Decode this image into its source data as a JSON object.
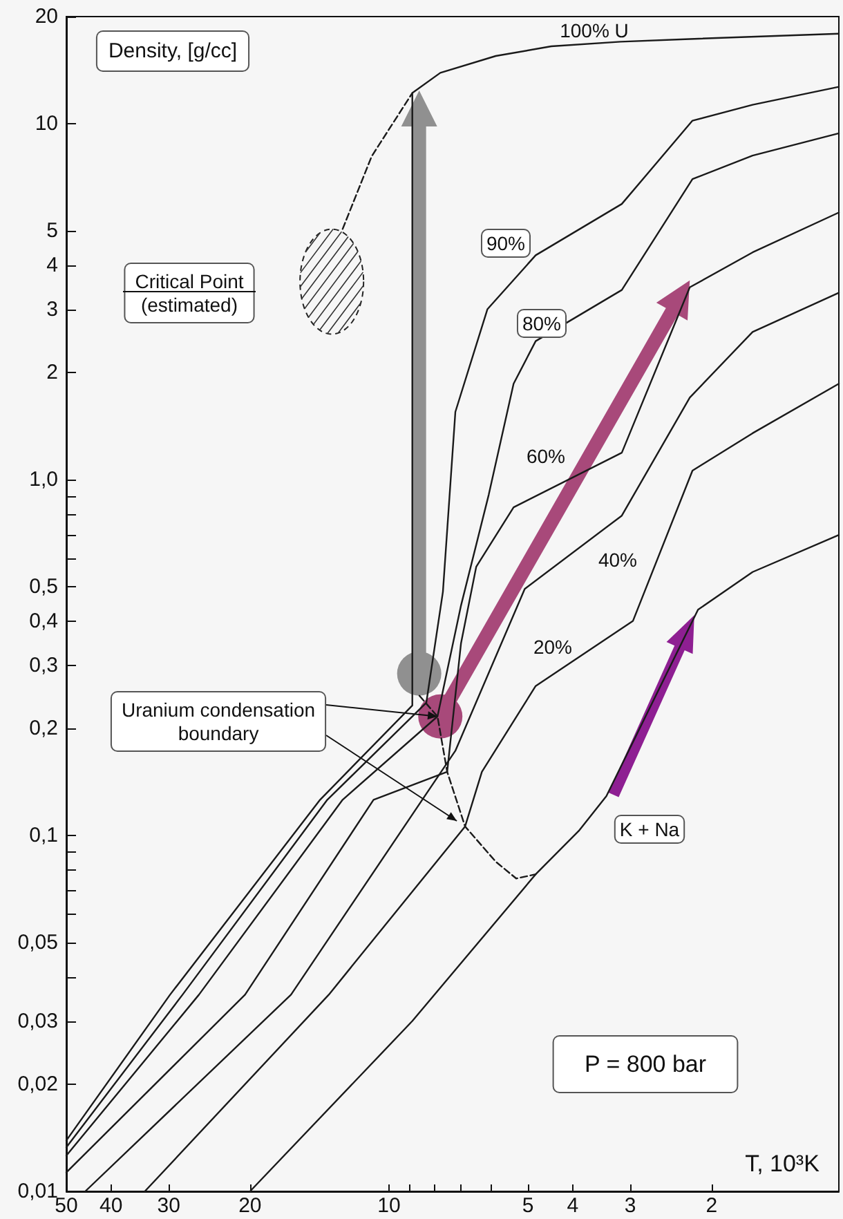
{
  "chart_data": {
    "type": "line",
    "xlabel": "T, 10³K",
    "ylabel": "Density, [g/cc]",
    "log": "xy",
    "marker": "none",
    "xlim": [
      50,
      1.06
    ],
    "ylim": [
      0.01,
      20
    ],
    "xticks": [
      50,
      40,
      30,
      20,
      10,
      {
        "value": 9,
        "label": null
      },
      {
        "value": 8,
        "label": null
      },
      {
        "value": 7,
        "label": null
      },
      {
        "value": 6,
        "label": null
      },
      5,
      4,
      3,
      2
    ],
    "yticks": [
      20,
      10,
      5,
      4,
      3,
      2,
      {
        "value": 1,
        "label": "1,0"
      },
      {
        "value": 0.9,
        "label": null
      },
      {
        "value": 0.8,
        "label": null
      },
      {
        "value": 0.7,
        "label": null
      },
      {
        "value": 0.6,
        "label": null
      },
      {
        "value": 0.5,
        "label": "0,5"
      },
      {
        "value": 0.4,
        "label": "0,4"
      },
      {
        "value": 0.3,
        "label": "0,3"
      },
      {
        "value": 0.2,
        "label": "0,2"
      },
      {
        "value": 0.1,
        "label": "0,1"
      },
      {
        "value": 0.09,
        "label": null
      },
      {
        "value": 0.08,
        "label": null
      },
      {
        "value": 0.07,
        "label": null
      },
      {
        "value": 0.06,
        "label": null
      },
      {
        "value": 0.05,
        "label": "0,05"
      },
      {
        "value": 0.04,
        "label": null
      },
      {
        "value": 0.03,
        "label": "0,03"
      },
      {
        "value": 0.02,
        "label": "0,02"
      },
      {
        "value": 0.01,
        "label": "0,01"
      }
    ],
    "annotations": [
      "Critical Point\n(estimated)",
      {
        "text": "Uranium condensation\nboundary",
        "x": 7.85,
        "y": 0.216
      },
      "P = 800 bar"
    ],
    "series": [
      {
        "name": "100% U",
        "color": "#1a1a1a",
        "x": [
          50,
          29.8,
          14.1,
          8.9,
          8.9,
          7.74,
          5.87,
          4.45,
          3.15,
          2.23,
          1.06
        ],
        "values": [
          0.0139,
          0.0357,
          0.126,
          0.232,
          12.2,
          13.9,
          15.5,
          16.5,
          17,
          17.3,
          17.9
        ]
      },
      {
        "name": "90%",
        "color": "#1a1a1a",
        "x": [
          50,
          28,
          13.6,
          8.3,
          7.64,
          7.18,
          6.12,
          4.81,
          3.13,
          2.2,
          1.63,
          1.06
        ],
        "values": [
          0.0133,
          0.0357,
          0.126,
          0.236,
          0.484,
          1.55,
          3.01,
          4.27,
          5.95,
          10.2,
          11.3,
          12.7
        ]
      },
      {
        "name": "80%",
        "color": "#1a1a1a",
        "x": [
          50,
          25.8,
          12.6,
          7.85,
          6.98,
          6.08,
          5.37,
          4.81,
          3.13,
          2.2,
          1.63,
          1.06
        ],
        "values": [
          0.0126,
          0.0357,
          0.126,
          0.216,
          0.443,
          0.906,
          1.86,
          2.45,
          3.41,
          6.99,
          8.14,
          9.4
        ]
      },
      {
        "name": "60%",
        "color": "#1a1a1a",
        "x": [
          50,
          20.5,
          10.8,
          7.48,
          6.98,
          6.47,
          5.37,
          3.13,
          2.23,
          1.63,
          1.06
        ],
        "values": [
          0.0113,
          0.0357,
          0.126,
          0.151,
          0.347,
          0.569,
          0.836,
          1.19,
          3.47,
          4.35,
          5.63
        ]
      },
      {
        "name": "40%",
        "color": "#1a1a1a",
        "x": [
          45.5,
          16.3,
          8.47,
          7.18,
          5.08,
          3.13,
          2.23,
          1.63,
          1.06
        ],
        "values": [
          0.01,
          0.0357,
          0.126,
          0.173,
          0.493,
          0.792,
          1.7,
          2.6,
          3.35
        ]
      },
      {
        "name": "20%",
        "color": "#1a1a1a",
        "x": [
          33.8,
          13.5,
          6.84,
          6.29,
          4.81,
          2.96,
          2.2,
          1.63,
          1.06
        ],
        "values": [
          0.01,
          0.0357,
          0.106,
          0.151,
          0.263,
          0.401,
          1.06,
          1.35,
          1.86
        ]
      },
      {
        "name": "K + Na",
        "color": "#1a1a1a",
        "x": [
          20,
          8.9,
          4.81,
          3.88,
          3.38,
          2.14,
          1.63,
          1.06
        ],
        "values": [
          0.01,
          0.0301,
          0.0778,
          0.103,
          0.129,
          0.431,
          0.55,
          0.699
        ]
      },
      {
        "color": "#1a1a1a",
        "line_style": "dashed",
        "x": [
          12.6,
          10.9,
          8.9
        ],
        "values": [
          5.06,
          8.1,
          12.2
        ]
      },
      {
        "color": "#1a1a1a",
        "line_style": "dashed",
        "x": [
          8.59,
          7.85,
          7.48,
          6.84,
          5.87,
          5.3,
          4.81
        ],
        "values": [
          0.247,
          0.216,
          0.151,
          0.106,
          0.0844,
          0.0757,
          0.0778
        ]
      }
    ]
  }
}
